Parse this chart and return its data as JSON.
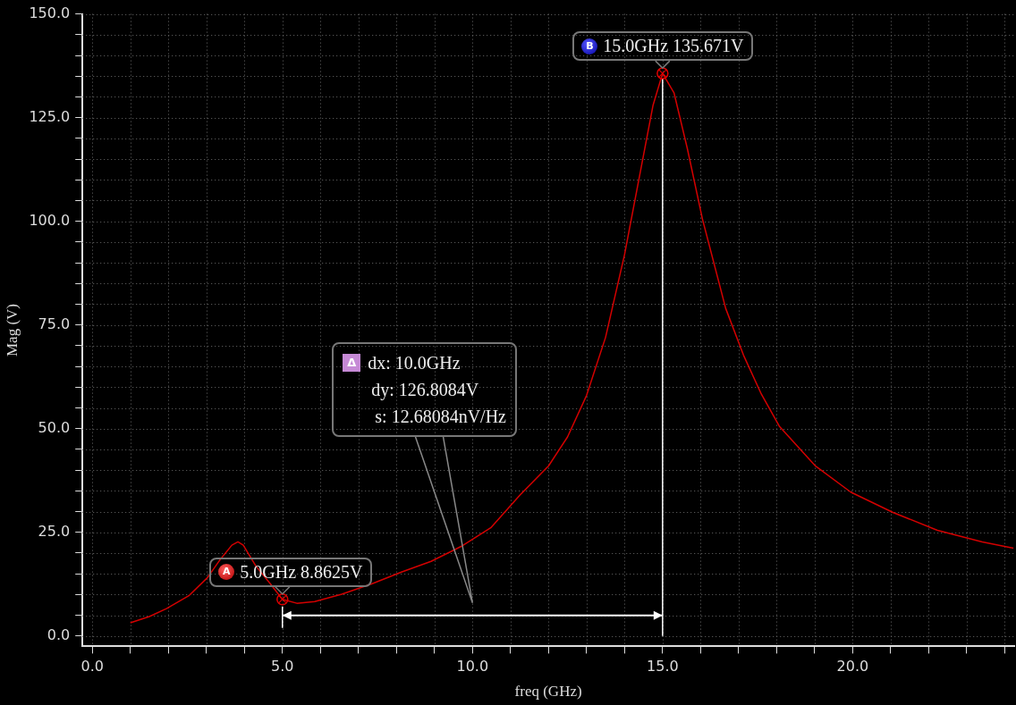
{
  "chart_data": {
    "type": "line",
    "xlabel": "freq (GHz)",
    "ylabel": "Mag (V)",
    "x": [
      1,
      1.5,
      1.95,
      2.55,
      3.03,
      3.36,
      3.67,
      3.83,
      3.97,
      4.3,
      4.68,
      5,
      5.38,
      5.85,
      6.56,
      7.36,
      8.13,
      8.91,
      9.7,
      10.48,
      11.26,
      12,
      12.5,
      13,
      13.5,
      14,
      14.5,
      14.75,
      15,
      15.3,
      15.65,
      16.05,
      16.66,
      17.13,
      17.6,
      18.07,
      19.01,
      19.95,
      21.06,
      22.23,
      23.41,
      24.23
    ],
    "values": [
      3.2,
      4.7,
      6.6,
      9.8,
      14.1,
      18.4,
      21.9,
      22.7,
      21.9,
      16.9,
      12.6,
      8.8625,
      7.9,
      8.3,
      10.1,
      12.6,
      15.4,
      18,
      21.6,
      26.1,
      34.1,
      41,
      48,
      58,
      72,
      92,
      116,
      128,
      135.671,
      131,
      117.6,
      100.5,
      79,
      67.7,
      58.3,
      50.6,
      41.1,
      34.7,
      29.8,
      25.5,
      22.7,
      21.2
    ],
    "color": "#d40000",
    "marker": "none",
    "line_style": "solid",
    "grid": true,
    "legend": false,
    "xlim": [
      -0.26,
      24.25
    ],
    "ylim": [
      -2.5,
      150
    ],
    "xticks": [
      {
        "value": 0,
        "label": "0.0"
      },
      {
        "value": 1,
        "label": null
      },
      {
        "value": 2,
        "label": null
      },
      {
        "value": 3,
        "label": null
      },
      {
        "value": 4,
        "label": null
      },
      {
        "value": 5,
        "label": "5.0"
      },
      {
        "value": 6,
        "label": null
      },
      {
        "value": 7,
        "label": null
      },
      {
        "value": 8,
        "label": null
      },
      {
        "value": 9,
        "label": null
      },
      {
        "value": 10,
        "label": "10.0"
      },
      {
        "value": 11,
        "label": null
      },
      {
        "value": 12,
        "label": null
      },
      {
        "value": 13,
        "label": null
      },
      {
        "value": 14,
        "label": null
      },
      {
        "value": 15,
        "label": "15.0"
      },
      {
        "value": 16,
        "label": null
      },
      {
        "value": 17,
        "label": null
      },
      {
        "value": 18,
        "label": null
      },
      {
        "value": 19,
        "label": null
      },
      {
        "value": 20,
        "label": "20.0"
      },
      {
        "value": 21,
        "label": null
      },
      {
        "value": 22,
        "label": null
      },
      {
        "value": 23,
        "label": null
      },
      {
        "value": 24,
        "label": null
      }
    ],
    "yticks": [
      {
        "value": 0,
        "label": "0.0"
      },
      {
        "value": 5,
        "label": null
      },
      {
        "value": 10,
        "label": null
      },
      {
        "value": 15,
        "label": null
      },
      {
        "value": 20,
        "label": null
      },
      {
        "value": 25,
        "label": "25.0"
      },
      {
        "value": 30,
        "label": null
      },
      {
        "value": 35,
        "label": null
      },
      {
        "value": 40,
        "label": null
      },
      {
        "value": 45,
        "label": null
      },
      {
        "value": 50,
        "label": "50.0"
      },
      {
        "value": 55,
        "label": null
      },
      {
        "value": 60,
        "label": null
      },
      {
        "value": 65,
        "label": null
      },
      {
        "value": 70,
        "label": null
      },
      {
        "value": 75,
        "label": "75.0"
      },
      {
        "value": 80,
        "label": null
      },
      {
        "value": 85,
        "label": null
      },
      {
        "value": 90,
        "label": null
      },
      {
        "value": 95,
        "label": null
      },
      {
        "value": 100,
        "label": "100.0"
      },
      {
        "value": 105,
        "label": null
      },
      {
        "value": 110,
        "label": null
      },
      {
        "value": 115,
        "label": null
      },
      {
        "value": 120,
        "label": null
      },
      {
        "value": 125,
        "label": "125.0"
      },
      {
        "value": 130,
        "label": null
      },
      {
        "value": 135,
        "label": null
      },
      {
        "value": 140,
        "label": null
      },
      {
        "value": 145,
        "label": null
      },
      {
        "value": 150,
        "label": "150.0"
      }
    ],
    "ref_lines": [
      {
        "axis": "x",
        "value": 15,
        "color": "#ffffff"
      }
    ],
    "annotations": [
      {
        "text": "5.0GHz 8.8625V",
        "x": 5,
        "y": 8.8625
      },
      {
        "text": "15.0GHz 135.671V",
        "x": 15,
        "y": 135.671
      },
      "A",
      "B",
      "Δ",
      "dx: 10.0GHz",
      "dy: 126.8084V",
      "s: 12.68084nV/Hz"
    ]
  }
}
